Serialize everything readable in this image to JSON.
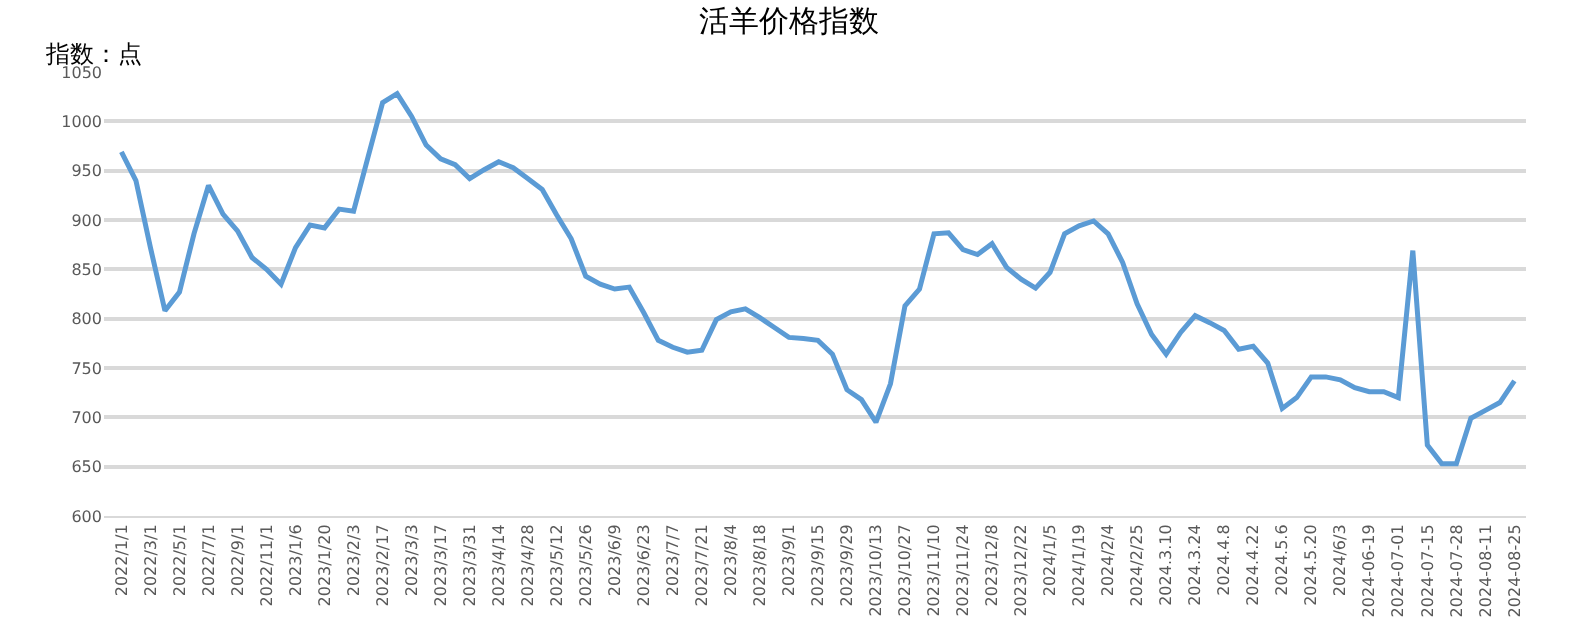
{
  "chart_data": {
    "type": "line",
    "title": "活羊价格指数",
    "ylabel": "指数：点",
    "categories": [
      "2022/1/1",
      null,
      "2022/3/1",
      null,
      "2022/5/1",
      null,
      "2022/7/1",
      null,
      "2022/9/1",
      null,
      "2022/11/1",
      null,
      "2023/1/6",
      null,
      "2023/1/20",
      null,
      "2023/2/3",
      null,
      "2023/2/17",
      null,
      "2023/3/3",
      null,
      "2023/3/17",
      null,
      "2023/3/31",
      null,
      "2023/4/14",
      null,
      "2023/4/28",
      null,
      "2023/5/12",
      null,
      "2023/5/26",
      null,
      "2023/6/9",
      null,
      "2023/6/23",
      null,
      "2023/7/7",
      null,
      "2023/7/21",
      null,
      "2023/8/4",
      null,
      "2023/8/18",
      null,
      "2023/9/1",
      null,
      "2023/9/15",
      null,
      "2023/9/29",
      null,
      "2023/10/13",
      null,
      "2023/10/27",
      null,
      "2023/11/10",
      null,
      "2023/11/24",
      null,
      "2023/12/8",
      null,
      "2023/12/22",
      null,
      "2024/1/5",
      null,
      "2024/1/19",
      null,
      "2024/2/4",
      null,
      "2024/2/25",
      null,
      "2024.3.10",
      null,
      "2024.3.24",
      null,
      "2024.4.8",
      null,
      "2024.4.22",
      null,
      "2024.5.6",
      null,
      "2024.5.20",
      null,
      "2024/6/3",
      null,
      "2024-06-19",
      null,
      "2024-07-01",
      null,
      "2024-07-15",
      null,
      "2024-07-28",
      null,
      "2024-08-11",
      null,
      "2024-08-25"
    ],
    "series": [
      {
        "color": "#5b9bd5",
        "values": [
          969,
          940,
          872,
          808,
          827,
          886,
          935,
          906,
          889,
          862,
          850,
          835,
          872,
          895,
          892,
          911,
          909,
          964,
          1019,
          1028,
          1005,
          976,
          962,
          956,
          942,
          951,
          959,
          953,
          942,
          931,
          905,
          881,
          843,
          835,
          830,
          832,
          806,
          778,
          771,
          766,
          768,
          799,
          807,
          810,
          801,
          791,
          781,
          780,
          778,
          764,
          728,
          718,
          695,
          734,
          813,
          830,
          886,
          887,
          870,
          865,
          876,
          852,
          840,
          831,
          847,
          886,
          894,
          899,
          886,
          857,
          815,
          784,
          764,
          786,
          803,
          796,
          788,
          769,
          772,
          755,
          709,
          720,
          741,
          741,
          738,
          730,
          726,
          726,
          720,
          869,
          672,
          653,
          653,
          699,
          707,
          715,
          737
        ]
      }
    ],
    "ylim": [
      600,
      1050
    ],
    "yticks": [
      600,
      650,
      700,
      750,
      800,
      850,
      900,
      950,
      1000,
      1050
    ],
    "grid": "y",
    "legend": false,
    "marker": "none",
    "line_style": "solid"
  }
}
